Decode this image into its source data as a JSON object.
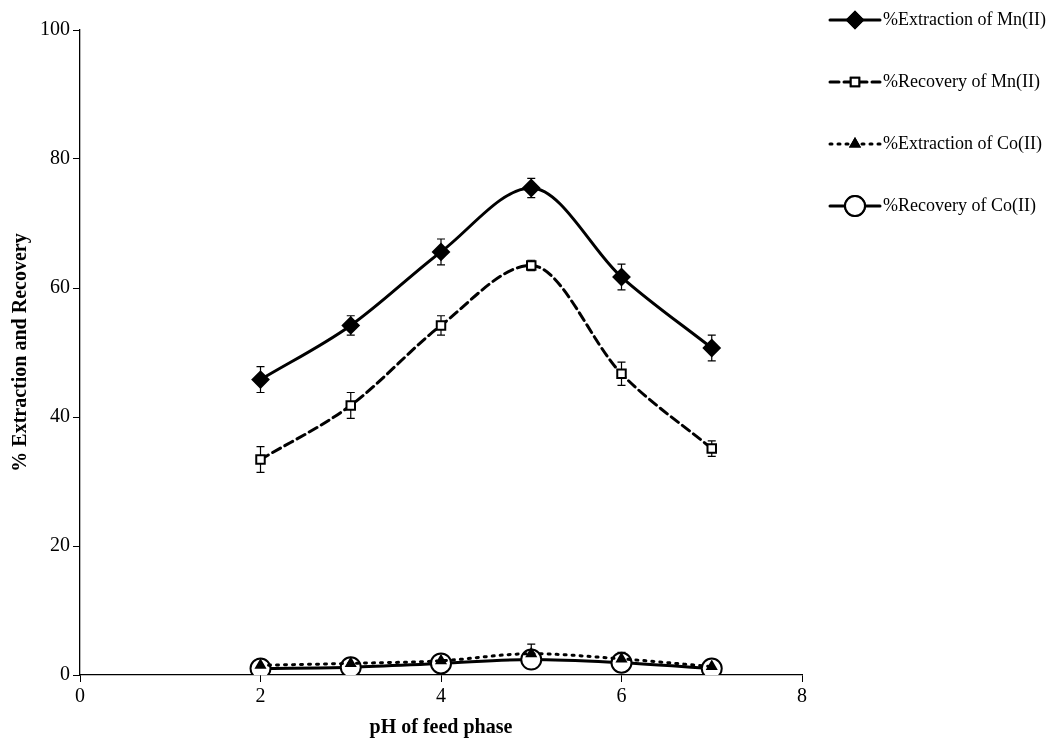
{
  "chart_data": {
    "type": "line",
    "xlabel": "pH of feed phase",
    "ylabel": "% Extraction and Recovery",
    "x": [
      2,
      3,
      4,
      5,
      6,
      7
    ],
    "xlim": [
      0,
      8
    ],
    "xticks": [
      0,
      2,
      4,
      6,
      8
    ],
    "ylim": [
      0,
      100
    ],
    "yticks": [
      0,
      20,
      40,
      60,
      80,
      100
    ],
    "grid": false,
    "legend": "top right",
    "series": [
      {
        "name": "%Extraction of Mn(II)",
        "color": "#000000",
        "marker": "diamond",
        "line_style": "solid",
        "values": [
          45.8,
          54.2,
          65.6,
          75.5,
          61.7,
          50.7
        ],
        "errors": [
          2,
          1.5,
          2,
          1.5,
          2,
          2
        ]
      },
      {
        "name": "%Recovery of Mn(II)",
        "color": "#000000",
        "marker": "square",
        "line_style": "dashed",
        "values": [
          33.4,
          41.8,
          54.2,
          63.5,
          46.7,
          35.1
        ],
        "errors": [
          2,
          2,
          1.5,
          0.8,
          1.8,
          1.2
        ]
      },
      {
        "name": "%Extraction of Co(II)",
        "color": "#000000",
        "marker": "triangle",
        "line_style": "dotted",
        "values": [
          1.5,
          1.8,
          2.2,
          3.3,
          2.5,
          1.3
        ],
        "errors": [
          0.8,
          0.8,
          1,
          1.5,
          1,
          0.8
        ]
      },
      {
        "name": "%Recovery of Co(II)",
        "color": "#000000",
        "marker": "circle",
        "line_style": "solid",
        "values": [
          1,
          1.2,
          1.8,
          2.4,
          1.9,
          1
        ]
      }
    ]
  }
}
